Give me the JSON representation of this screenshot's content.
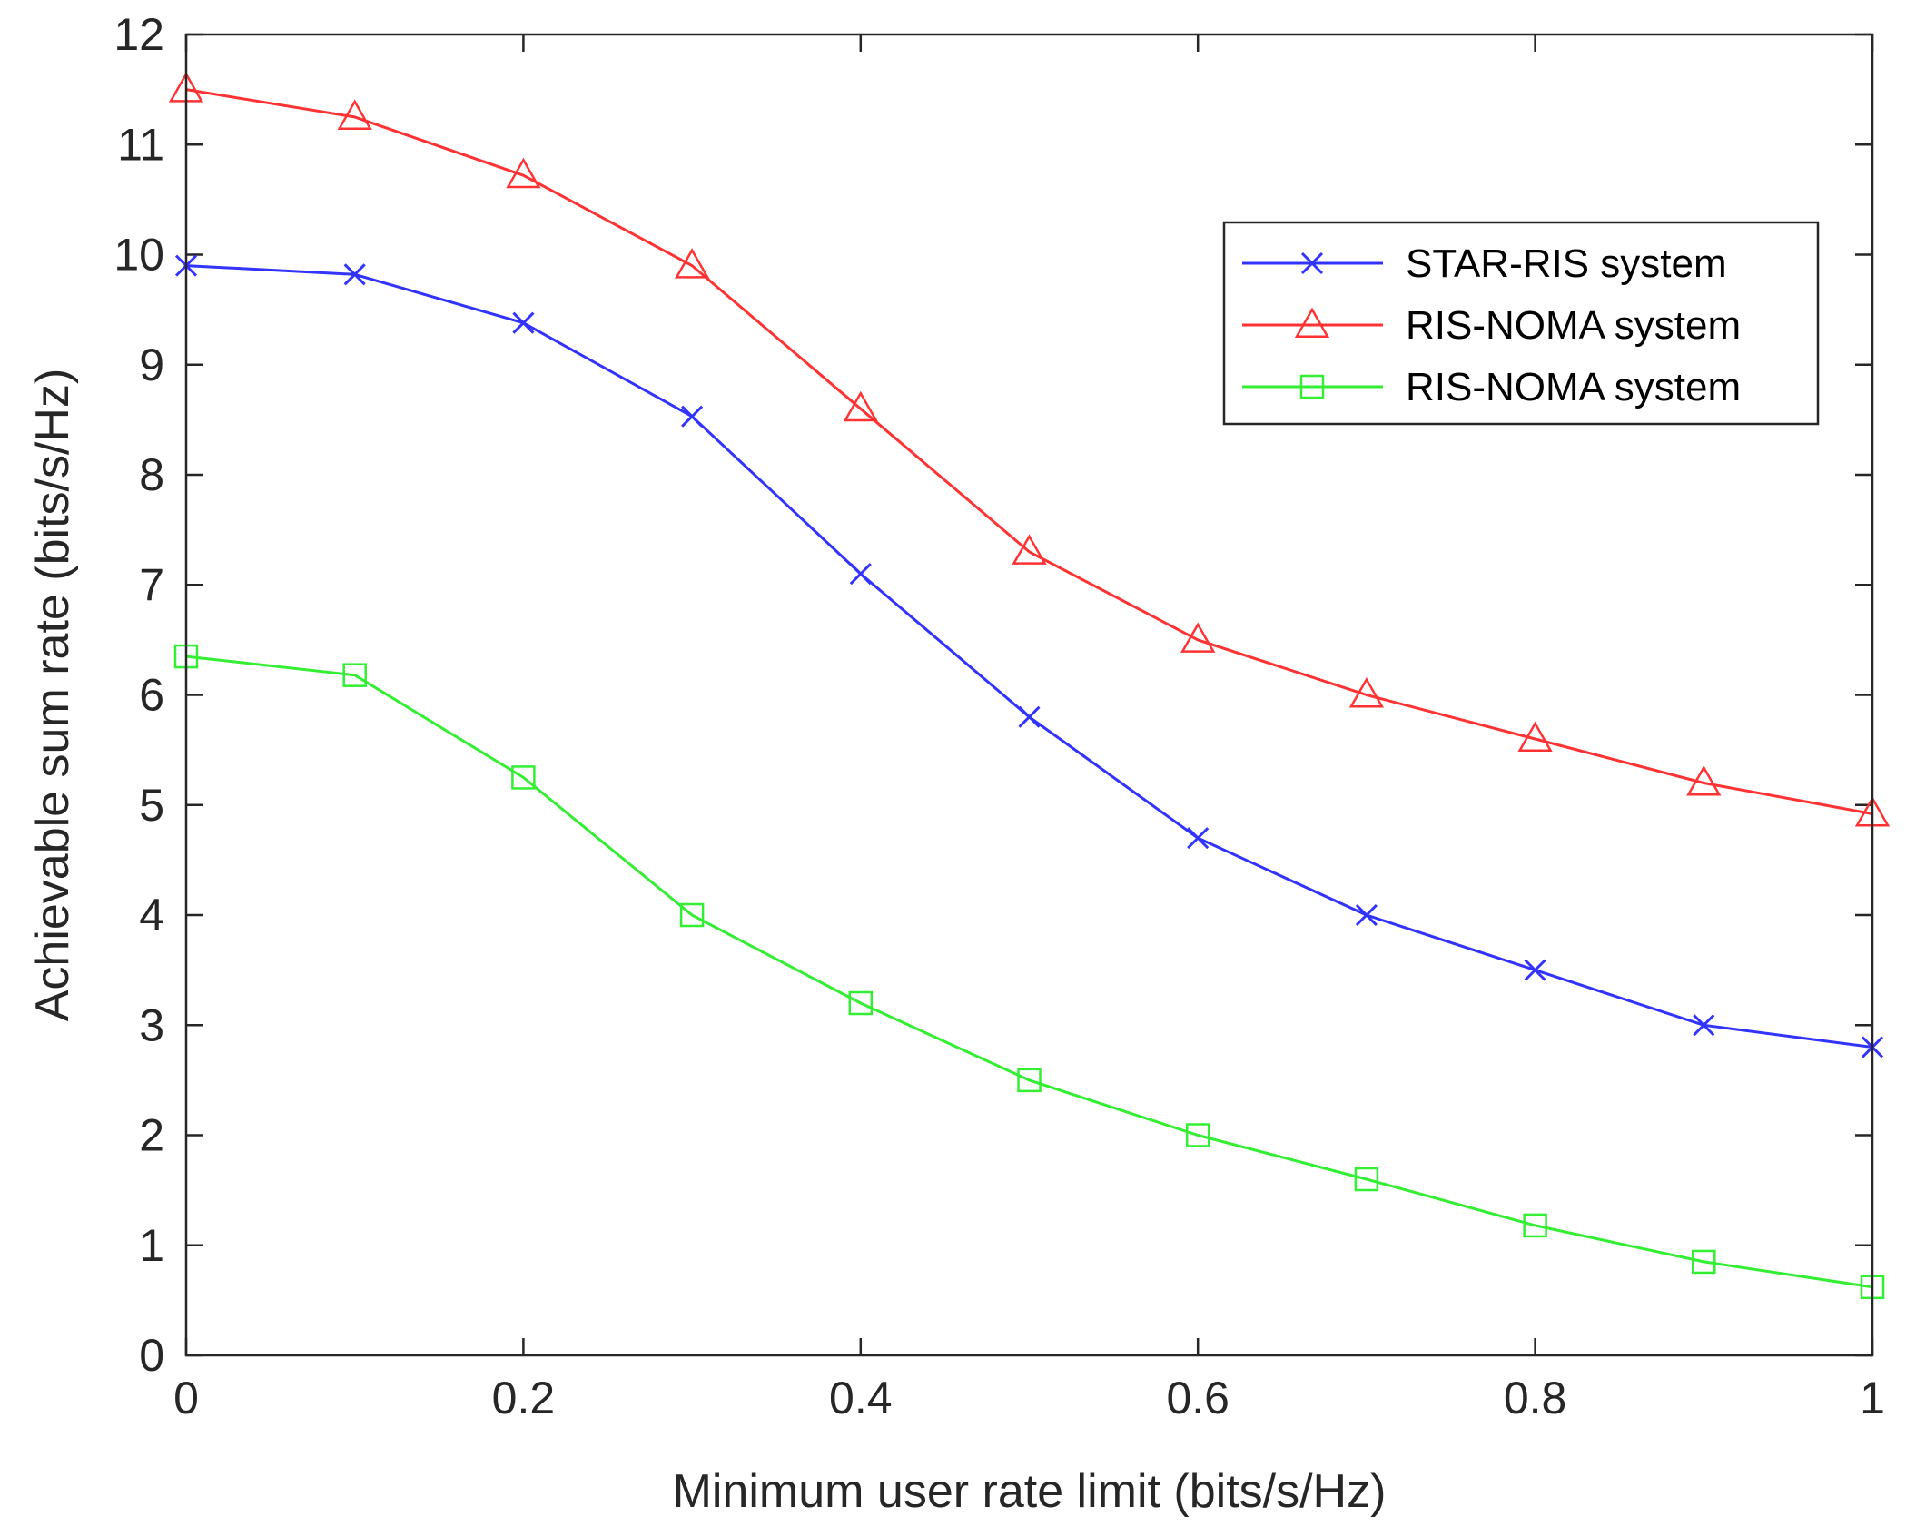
{
  "chart_data": {
    "type": "line",
    "title": "",
    "xlabel": "Minimum user rate limit (bits/s/Hz)",
    "ylabel": "Achievable sum rate (bits/s/Hz)",
    "xlim": [
      0,
      1
    ],
    "ylim": [
      0,
      12
    ],
    "xticks": [
      0,
      0.2,
      0.4,
      0.6,
      0.8,
      1
    ],
    "xtick_labels": [
      "0",
      "0.2",
      "0.4",
      "0.6",
      "0.8",
      "1"
    ],
    "yticks": [
      0,
      1,
      2,
      3,
      4,
      5,
      6,
      7,
      8,
      9,
      10,
      11,
      12
    ],
    "ytick_labels": [
      "0",
      "1",
      "2",
      "3",
      "4",
      "5",
      "6",
      "7",
      "8",
      "9",
      "10",
      "11",
      "12"
    ],
    "grid": false,
    "legend_position": "top-right",
    "x": [
      0,
      0.1,
      0.2,
      0.3,
      0.4,
      0.5,
      0.6,
      0.7,
      0.8,
      0.9,
      1.0
    ],
    "series": [
      {
        "name": "STAR-RIS system",
        "color": "#3333ff",
        "marker": "x",
        "values": [
          9.9,
          9.82,
          9.38,
          8.53,
          7.1,
          5.8,
          4.7,
          4.0,
          3.5,
          3.0,
          2.8
        ]
      },
      {
        "name": "RIS-NOMA system",
        "color": "#ff3333",
        "marker": "triangle",
        "values": [
          11.5,
          11.25,
          10.72,
          9.9,
          8.6,
          7.3,
          6.5,
          6.0,
          5.6,
          5.2,
          4.92
        ]
      },
      {
        "name": "RIS-NOMA system",
        "color": "#33ee33",
        "marker": "square",
        "values": [
          6.35,
          6.18,
          5.25,
          4.0,
          3.2,
          2.5,
          2.0,
          1.6,
          1.18,
          0.85,
          0.62
        ]
      }
    ]
  }
}
